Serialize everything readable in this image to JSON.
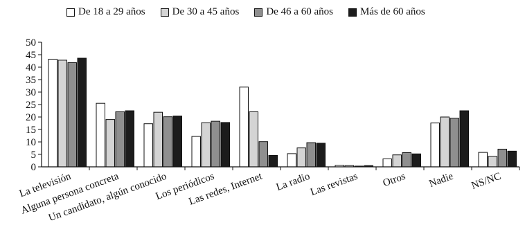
{
  "chart_data": {
    "type": "bar",
    "title": "",
    "xlabel": "",
    "ylabel": "",
    "ylim": [
      0,
      50
    ],
    "yticks": [
      0,
      5,
      10,
      15,
      20,
      25,
      30,
      35,
      40,
      45,
      50
    ],
    "grid": false,
    "legend_position": "top",
    "categories": [
      "La televisión",
      "Alguna persona concreta",
      "Un candidato, algún conocido",
      "Los periódicos",
      "Las redes, Internet",
      "La radio",
      "Las revistas",
      "Otros",
      "Nadie",
      "NS/NC"
    ],
    "series": [
      {
        "name": "De 18 a 29 años",
        "color": "#ffffff",
        "values": [
          43.2,
          25.5,
          17.3,
          12.2,
          32.0,
          5.3,
          0.6,
          3.2,
          17.6,
          5.8
        ]
      },
      {
        "name": "De 30 a 45 años",
        "color": "#d4d4d4",
        "values": [
          42.8,
          19.0,
          21.9,
          17.7,
          22.1,
          7.6,
          0.5,
          4.8,
          20.0,
          4.2
        ]
      },
      {
        "name": "De 46 a 60 años",
        "color": "#8f8f8f",
        "values": [
          41.8,
          22.1,
          20.1,
          18.3,
          10.1,
          9.7,
          0.3,
          5.7,
          19.5,
          7.1
        ]
      },
      {
        "name": "Más de 60 años",
        "color": "#1c1c1c",
        "values": [
          43.6,
          22.5,
          20.4,
          17.8,
          4.6,
          9.5,
          0.5,
          5.2,
          22.5,
          6.3
        ]
      }
    ]
  }
}
